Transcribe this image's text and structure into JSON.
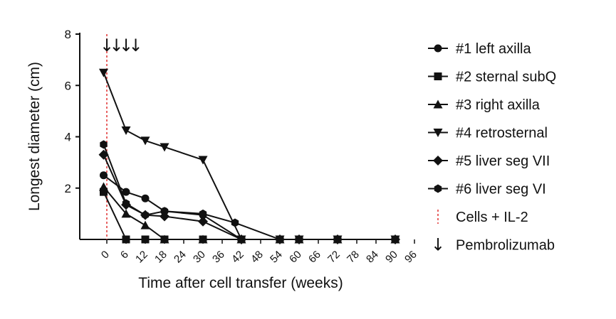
{
  "chart_data": {
    "type": "line",
    "xlabel": "Time after cell transfer (weeks)",
    "ylabel": "Longest diameter (cm)",
    "ylim": [
      0,
      8
    ],
    "yticks": [
      2,
      4,
      6,
      8
    ],
    "xticks": [
      0,
      6,
      12,
      18,
      24,
      30,
      36,
      42,
      48,
      54,
      60,
      66,
      72,
      78,
      84,
      90,
      96
    ],
    "xlim": [
      -6,
      96
    ],
    "grid": false,
    "legend_position": "right",
    "series": [
      {
        "name": "#1 left axilla",
        "marker": "circle",
        "x": [
          -1,
          6,
          12,
          18,
          30,
          42,
          54,
          60,
          72,
          90
        ],
        "y": [
          2.5,
          1.85,
          1.6,
          1.1,
          0.95,
          0.0,
          0.0,
          0.0,
          0.0,
          0.0
        ]
      },
      {
        "name": "#2 sternal subQ",
        "marker": "square",
        "x": [
          -1,
          6,
          12,
          18,
          30,
          42,
          54,
          60,
          72,
          90
        ],
        "y": [
          1.85,
          0.0,
          0.0,
          0.0,
          0.0,
          0.0,
          0.0,
          0.0,
          0.0,
          0.0
        ]
      },
      {
        "name": "#3 right axilla",
        "marker": "triangle-up",
        "x": [
          -1,
          6,
          12,
          18,
          30,
          42,
          54,
          60,
          72,
          90
        ],
        "y": [
          2.05,
          1.0,
          0.55,
          0.0,
          0.0,
          0.0,
          0.0,
          0.0,
          0.0,
          0.0
        ]
      },
      {
        "name": "#4 retrosternal",
        "marker": "triangle-down",
        "x": [
          -1,
          6,
          12,
          18,
          30,
          42,
          54,
          60,
          72,
          90
        ],
        "y": [
          6.5,
          4.25,
          3.85,
          3.6,
          3.1,
          0.0,
          0.0,
          0.0,
          0.0,
          0.0
        ]
      },
      {
        "name": "#5 liver seg VII",
        "marker": "diamond",
        "x": [
          -1,
          6,
          12,
          18,
          30,
          42,
          54,
          60,
          72,
          90
        ],
        "y": [
          3.3,
          1.35,
          0.95,
          0.9,
          0.7,
          0.0,
          0.0,
          0.0,
          0.0,
          0.0
        ]
      },
      {
        "name": "#6 liver seg VI",
        "marker": "hexagon",
        "x": [
          -1,
          6,
          12,
          18,
          30,
          40,
          54,
          60,
          72,
          90
        ],
        "y": [
          3.7,
          1.4,
          0.95,
          1.1,
          1.0,
          0.65,
          0.0,
          0.0,
          0.0,
          0.0
        ]
      }
    ],
    "annotations": {
      "cells_il2": {
        "label": "Cells + IL-2",
        "x": 0,
        "color": "#e03030"
      },
      "pembrolizumab": {
        "label": "Pembrolizumab",
        "glyph": "↓",
        "x": [
          0,
          3,
          6,
          9
        ]
      }
    }
  }
}
